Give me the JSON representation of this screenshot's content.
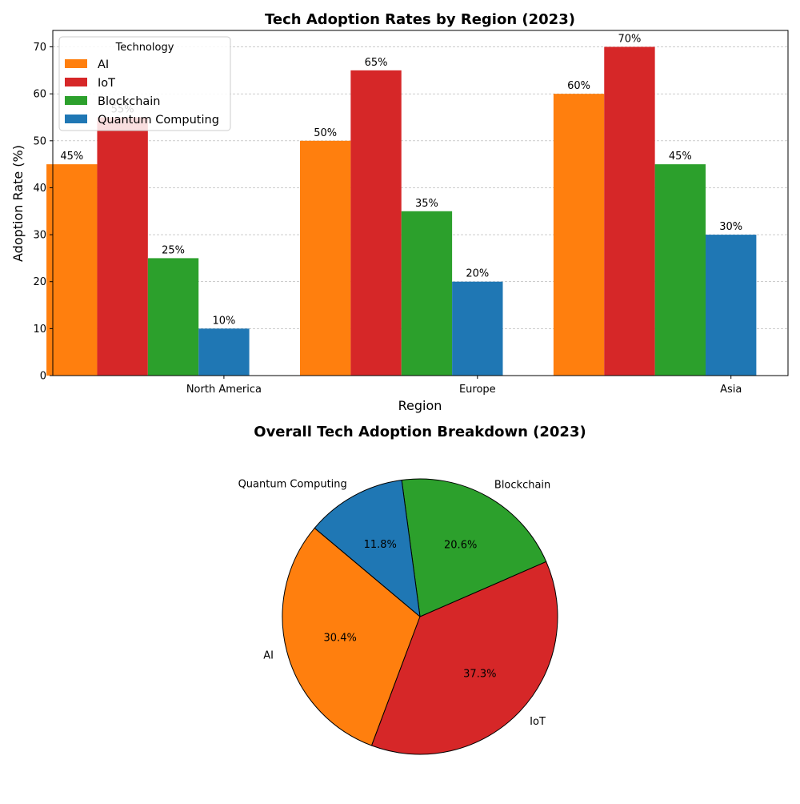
{
  "chart_data": [
    {
      "type": "bar",
      "title": "Tech Adoption Rates by Region (2023)",
      "xlabel": "Region",
      "ylabel": "Adoption Rate (%)",
      "categories": [
        "North America",
        "Europe",
        "Asia"
      ],
      "series": [
        {
          "name": "AI",
          "color": "#ff7f0e",
          "values": [
            45,
            50,
            60
          ]
        },
        {
          "name": "IoT",
          "color": "#d62728",
          "values": [
            55,
            65,
            70
          ]
        },
        {
          "name": "Blockchain",
          "color": "#2ca02c",
          "values": [
            25,
            35,
            45
          ]
        },
        {
          "name": "Quantum Computing",
          "color": "#1f77b4",
          "values": [
            10,
            20,
            30
          ]
        }
      ],
      "data_labels": [
        [
          "45%",
          "50%",
          "60%"
        ],
        [
          "55%",
          "65%",
          "70%"
        ],
        [
          "25%",
          "35%",
          "45%"
        ],
        [
          "10%",
          "20%",
          "30%"
        ]
      ],
      "ylim": [
        0,
        73.5
      ],
      "yticks": [
        "0",
        "10",
        "20",
        "30",
        "40",
        "50",
        "60",
        "70"
      ],
      "grid": "horizontal dashed",
      "legend": {
        "title": "Technology",
        "placement": "top-left"
      }
    },
    {
      "type": "pie",
      "title": "Overall Tech Adoption Breakdown (2023)",
      "labels": [
        "AI",
        "IoT",
        "Blockchain",
        "Quantum Computing"
      ],
      "values": [
        155,
        190,
        105,
        60
      ],
      "percent_labels": [
        "30.4%",
        "37.3%",
        "20.6%",
        "11.8%"
      ],
      "colors": [
        "#ff7f0e",
        "#d62728",
        "#2ca02c",
        "#1f77b4"
      ]
    }
  ]
}
